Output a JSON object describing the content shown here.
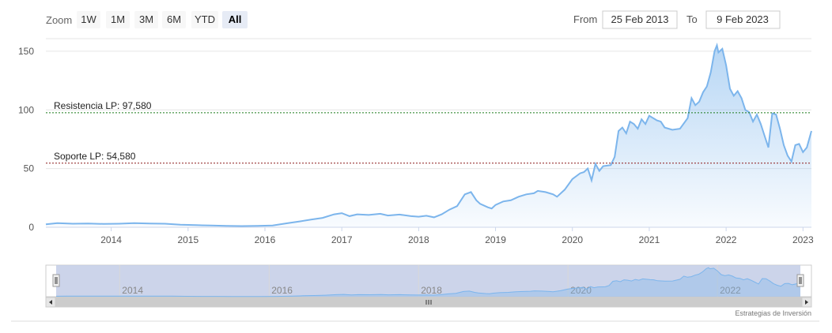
{
  "range_selector": {
    "zoom_label": "Zoom",
    "buttons": [
      "1W",
      "1M",
      "3M",
      "6M",
      "YTD",
      "All"
    ],
    "selected": "All",
    "from_label": "From",
    "from_value": "25 Feb 2013",
    "to_label": "To",
    "to_value": "9 Feb 2023"
  },
  "credits": "Estrategias de Inversión",
  "colors": {
    "series_line": "#7cb5ec",
    "resistance_line": "#1a7a1a",
    "support_line": "#8b1a1a",
    "navigator_mask": "#c3cde6"
  },
  "chart_data": {
    "type": "area",
    "title": "",
    "xlabel": "",
    "ylabel": "",
    "x_range": [
      2013.15,
      2023.11
    ],
    "ylim": [
      0,
      160
    ],
    "yticks": [
      0,
      50,
      100,
      150
    ],
    "xticks": [
      "2014",
      "2015",
      "2016",
      "2017",
      "2018",
      "2019",
      "2020",
      "2021",
      "2022",
      "2023"
    ],
    "grid": true,
    "navigator_ticks": [
      "2014",
      "2016",
      "2018",
      "2020",
      "2022"
    ],
    "plot_lines": [
      {
        "label": "Resistencia LP: 97,580",
        "value": 97.58
      },
      {
        "label": "Soporte LP: 54,580",
        "value": 54.58
      }
    ],
    "series": [
      {
        "x": [
          2013.15,
          2013.3,
          2013.5,
          2013.7,
          2013.9,
          2014.1,
          2014.3,
          2014.5,
          2014.7,
          2014.9,
          2015.1,
          2015.3,
          2015.5,
          2015.7,
          2015.9,
          2016.1,
          2016.3,
          2016.45,
          2016.6,
          2016.75,
          2016.9,
          2017.0,
          2017.1,
          2017.2,
          2017.35,
          2017.5,
          2017.6,
          2017.75,
          2017.9,
          2018.0,
          2018.1,
          2018.2,
          2018.3,
          2018.4,
          2018.5,
          2018.6,
          2018.68,
          2018.75,
          2018.8,
          2018.9,
          2018.95,
          2019.0,
          2019.1,
          2019.2,
          2019.3,
          2019.4,
          2019.5,
          2019.55,
          2019.65,
          2019.75,
          2019.8,
          2019.9,
          2020.0,
          2020.1,
          2020.15,
          2020.2,
          2020.25,
          2020.3,
          2020.35,
          2020.4,
          2020.5,
          2020.55,
          2020.6,
          2020.65,
          2020.7,
          2020.75,
          2020.8,
          2020.85,
          2020.9,
          2020.95,
          2021.0,
          2021.1,
          2021.15,
          2021.2,
          2021.3,
          2021.4,
          2021.5,
          2021.55,
          2021.6,
          2021.65,
          2021.7,
          2021.75,
          2021.8,
          2021.85,
          2021.88,
          2021.9,
          2021.95,
          2022.0,
          2022.05,
          2022.1,
          2022.15,
          2022.2,
          2022.25,
          2022.3,
          2022.35,
          2022.4,
          2022.45,
          2022.5,
          2022.55,
          2022.6,
          2022.65,
          2022.7,
          2022.75,
          2022.8,
          2022.85,
          2022.9,
          2022.95,
          2023.0,
          2023.05,
          2023.11
        ],
        "values": [
          2.5,
          3.5,
          3.0,
          3.2,
          2.8,
          3.0,
          3.5,
          3.2,
          3.0,
          2.2,
          1.8,
          1.5,
          1.2,
          1.0,
          1.2,
          1.5,
          3.5,
          5.0,
          6.5,
          8.0,
          11.0,
          12.0,
          9.5,
          11.0,
          10.5,
          11.5,
          10.0,
          10.8,
          9.5,
          9.0,
          9.8,
          8.5,
          11.0,
          15.0,
          18.0,
          28.0,
          30.0,
          23.0,
          20.0,
          17.0,
          16.0,
          19.0,
          22.0,
          23.0,
          26.0,
          28.0,
          29.0,
          31.0,
          30.0,
          28.0,
          26.0,
          32.0,
          41.0,
          46.0,
          47.0,
          50.0,
          40.0,
          54.0,
          48.0,
          52.0,
          53.0,
          60.0,
          82.0,
          85.0,
          80.0,
          90.0,
          88.0,
          84.0,
          92.0,
          88.0,
          95.0,
          91.0,
          90.0,
          85.0,
          83.0,
          84.0,
          93.0,
          110.0,
          104.0,
          107.0,
          115.0,
          120.0,
          132.0,
          150.0,
          155.0,
          149.0,
          152.0,
          138.0,
          118.0,
          112.0,
          116.0,
          110.0,
          100.0,
          98.0,
          90.0,
          96.0,
          88.0,
          78.0,
          68.0,
          97.0,
          96.0,
          84.0,
          70.0,
          61.0,
          56.0,
          70.0,
          71.0,
          64.0,
          68.0,
          82.0
        ]
      }
    ]
  }
}
